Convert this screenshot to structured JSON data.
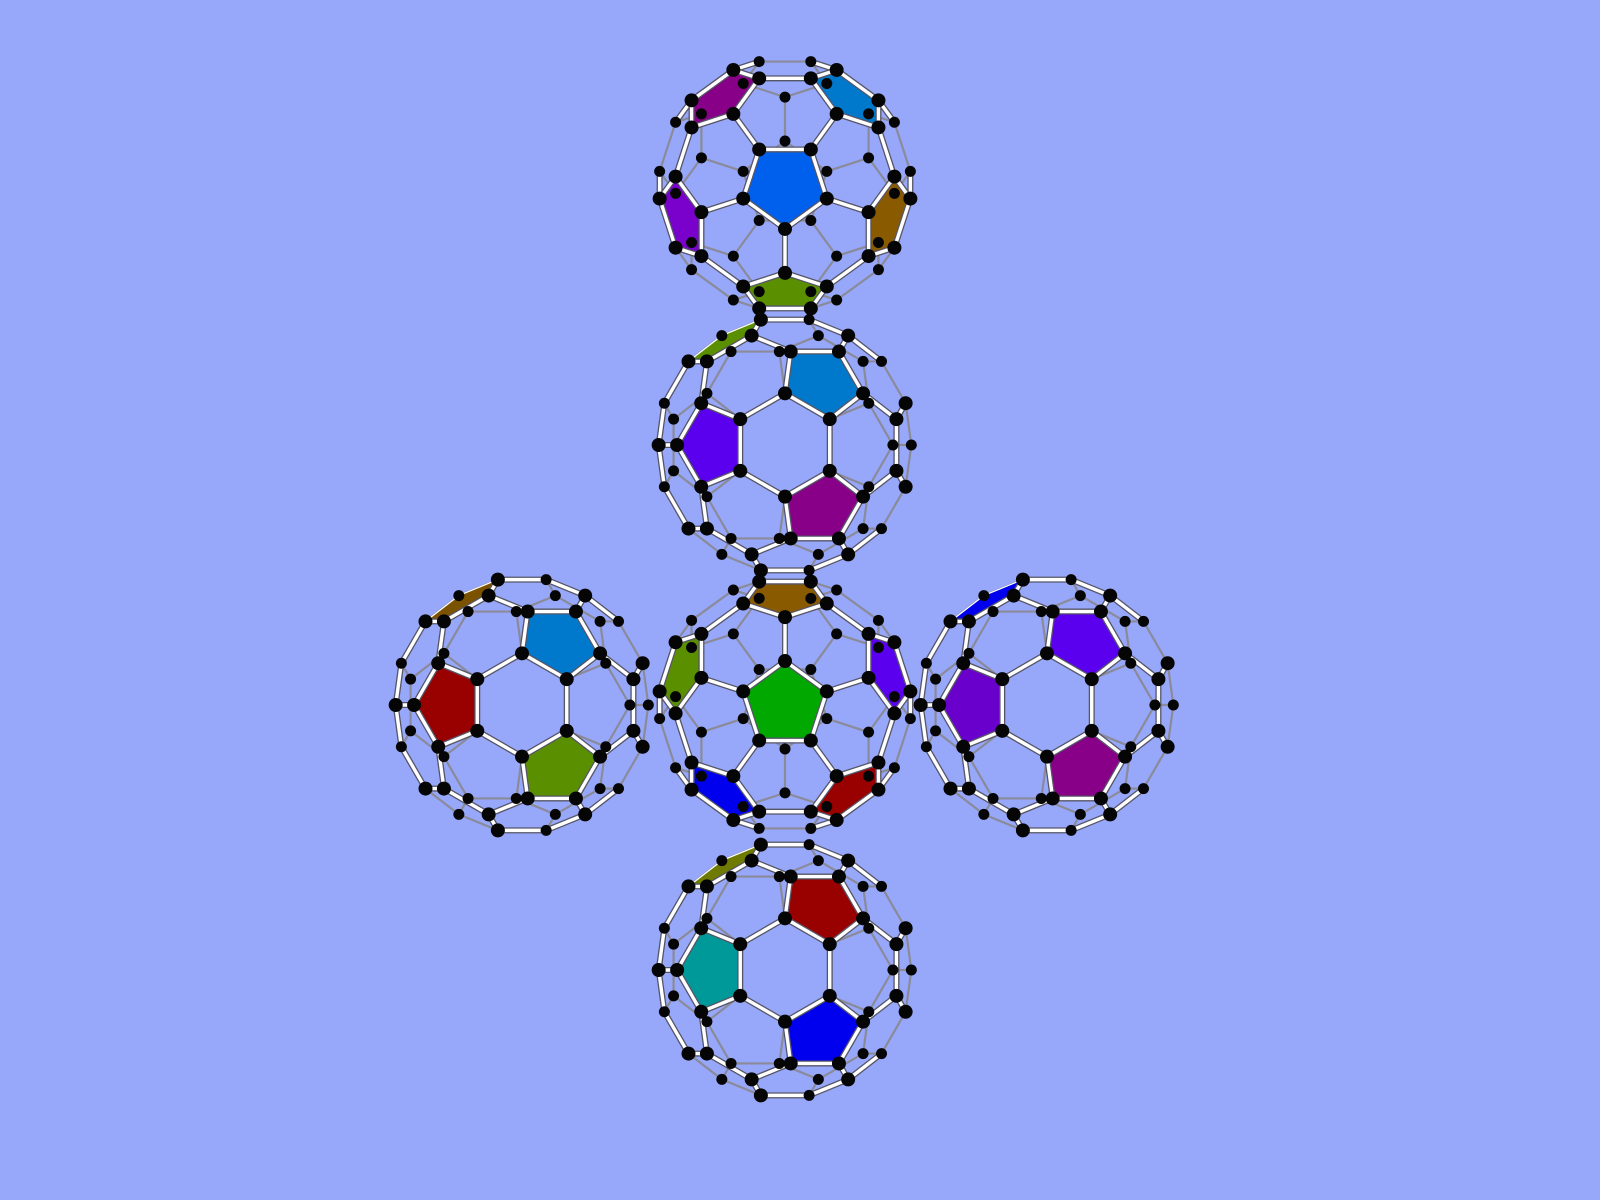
{
  "scene": {
    "background": "#97a8fb",
    "bond_color": "#ffffff",
    "atom_color": "#050505",
    "views": [
      {
        "name": "top",
        "front_face": "pentagon",
        "front_color": "#0060ee",
        "ring_colors": [
          "#8a5a00",
          "#7a00cc",
          "#0078cc",
          "#880088",
          "#5a8f00"
        ],
        "rotation_deg": 0
      },
      {
        "name": "upper",
        "front_face": "hexagon",
        "front_color": null,
        "ring_colors": [
          "#0078cc",
          "#880088",
          "#5a00ee",
          "#5a8f00"
        ],
        "rotation_deg": 0
      },
      {
        "name": "center",
        "front_face": "pentagon",
        "front_color": "#00a800",
        "ring_colors": [
          "#5a8f00",
          "#5a00ee",
          "#0000ee",
          "#990000",
          "#8a5a00"
        ],
        "rotation_deg": 180
      },
      {
        "name": "left",
        "front_face": "hexagon",
        "front_color": null,
        "ring_colors": [
          "#0078cc",
          "#5a8f00",
          "#990000",
          "#7a5200"
        ],
        "rotation_deg": 0
      },
      {
        "name": "right",
        "front_face": "hexagon",
        "front_color": null,
        "ring_colors": [
          "#5a00ee",
          "#880088",
          "#6a00cc",
          "#0000ee"
        ],
        "rotation_deg": 0
      },
      {
        "name": "bottom",
        "front_face": "hexagon",
        "front_color": null,
        "ring_colors": [
          "#990000",
          "#0000ee",
          "#009999",
          "#6e7a00"
        ],
        "rotation_deg": 0
      }
    ]
  }
}
